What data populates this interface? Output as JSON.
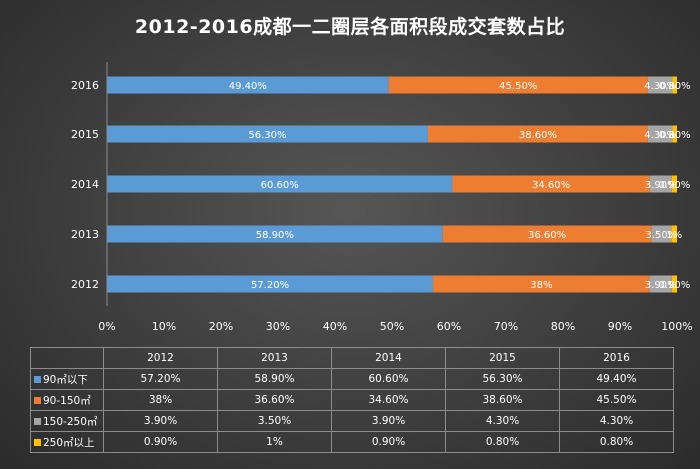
{
  "title": "2012-2016成都一二圈层各面积段成交套数占比",
  "chart_data": {
    "type": "bar",
    "orientation": "horizontal",
    "stacked": true,
    "title": "2012-2016成都一二圈层各面积段成交套数占比",
    "categories": [
      "2016",
      "2015",
      "2014",
      "2013",
      "2012"
    ],
    "xlim": [
      0,
      100
    ],
    "xticks": [
      "0%",
      "10%",
      "20%",
      "30%",
      "40%",
      "50%",
      "60%",
      "70%",
      "80%",
      "90%",
      "100%"
    ],
    "series": [
      {
        "name": "90㎡以下",
        "color": "#5b9bd5",
        "values": [
          49.4,
          56.3,
          60.6,
          58.9,
          57.2
        ],
        "labels": [
          "49.40%",
          "56.30%",
          "60.60%",
          "58.90%",
          "57.20%"
        ]
      },
      {
        "name": "90-150㎡",
        "color": "#ed7d31",
        "values": [
          45.5,
          38.6,
          34.6,
          36.6,
          38.0
        ],
        "labels": [
          "45.50%",
          "38.60%",
          "34.60%",
          "36.60%",
          "38%"
        ]
      },
      {
        "name": "150-250㎡",
        "color": "#a5a5a5",
        "values": [
          4.3,
          4.3,
          3.9,
          3.5,
          3.9
        ],
        "labels": [
          "4.30%",
          "4.30%",
          "3.90%",
          "3.50%",
          "3.90%"
        ]
      },
      {
        "name": "250㎡以上",
        "color": "#ffc000",
        "values": [
          0.8,
          0.8,
          0.9,
          1.0,
          0.9
        ],
        "labels": [
          "0.80%",
          "0.80%",
          "0.90%",
          "1%",
          "0.90%"
        ]
      }
    ],
    "legend": "data-table-below",
    "grid": false
  },
  "table": {
    "years": [
      "2012",
      "2013",
      "2014",
      "2015",
      "2016"
    ],
    "rows": [
      {
        "name": "90㎡以下",
        "color": "#5b9bd5",
        "cells": [
          "57.20%",
          "58.90%",
          "60.60%",
          "56.30%",
          "49.40%"
        ]
      },
      {
        "name": "90-150㎡",
        "color": "#ed7d31",
        "cells": [
          "38%",
          "36.60%",
          "34.60%",
          "38.60%",
          "45.50%"
        ]
      },
      {
        "name": "150-250㎡",
        "color": "#a5a5a5",
        "cells": [
          "3.90%",
          "3.50%",
          "3.90%",
          "4.30%",
          "4.30%"
        ]
      },
      {
        "name": "250㎡以上",
        "color": "#ffc000",
        "cells": [
          "0.90%",
          "1%",
          "0.90%",
          "0.80%",
          "0.80%"
        ]
      }
    ]
  }
}
